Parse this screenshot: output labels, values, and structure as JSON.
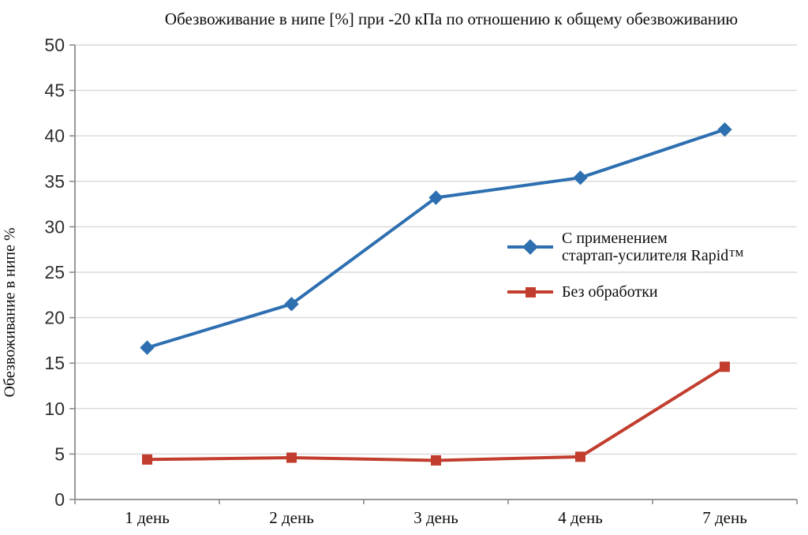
{
  "chart_data": {
    "type": "line",
    "title": "Обезвоживание в нипе [%] при -20 кПа по отношению к общему обезвоживанию",
    "xlabel": "",
    "ylabel": "Обезвоживание в нипе %",
    "categories": [
      "1 день",
      "2 день",
      "3 день",
      "4 день",
      "7 день"
    ],
    "series": [
      {
        "name": "С применением стартап-усилителя Rapid™",
        "marker": "diamond",
        "color": "#2d6fb0",
        "values": [
          16.7,
          21.5,
          33.2,
          35.4,
          40.7
        ]
      },
      {
        "name": "Без обработки",
        "marker": "square",
        "color": "#c23d2e",
        "values": [
          4.4,
          4.6,
          4.3,
          4.7,
          14.6
        ]
      }
    ],
    "ylim": [
      0,
      50
    ],
    "yticks": [
      0,
      5,
      10,
      15,
      20,
      25,
      30,
      35,
      40,
      45,
      50
    ],
    "grid": "horizontal",
    "legend_position": "inside-right-middle"
  },
  "legend": {
    "series1_line1": "С применением",
    "series1_line2": "стартап-усилителя Rapid™",
    "series2_label": "Без обработки"
  },
  "colors": {
    "series1": "#2d6fb0",
    "series2": "#c23d2e",
    "grid": "#d8d8d8",
    "axis": "#8c8c8c",
    "text": "#0c0c0c"
  }
}
